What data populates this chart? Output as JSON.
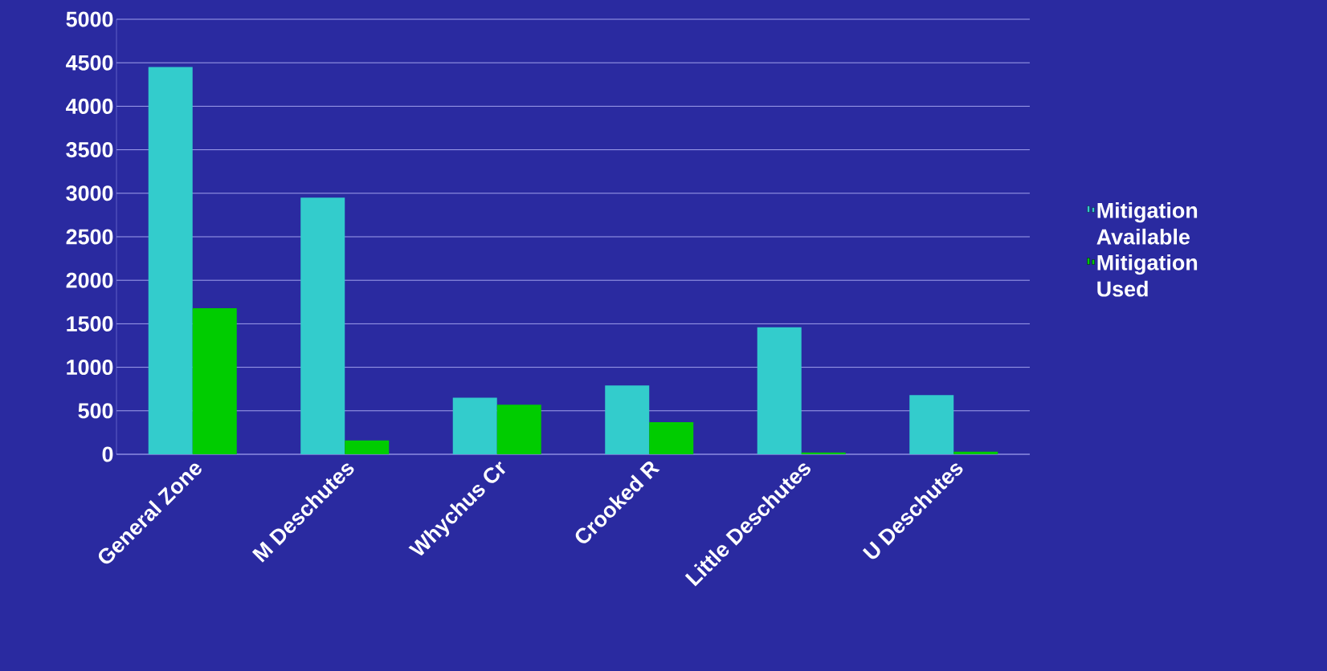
{
  "chart_data": {
    "type": "bar",
    "categories": [
      "General Zone",
      "M Deschutes",
      "Whychus Cr",
      "Crooked R",
      "Little Deschutes",
      "U Deschutes"
    ],
    "series": [
      {
        "name": "Mitigation Available",
        "color": "#33cccc",
        "values": [
          4450,
          2950,
          650,
          790,
          1460,
          680
        ]
      },
      {
        "name": "Mitigation Used",
        "color": "#00cc00",
        "values": [
          1680,
          160,
          570,
          370,
          20,
          30
        ]
      }
    ],
    "ylim": [
      0,
      5000
    ],
    "yticks": [
      0,
      500,
      1000,
      1500,
      2000,
      2500,
      3000,
      3500,
      4000,
      4500,
      5000
    ],
    "grid": "y",
    "legend": "right"
  }
}
